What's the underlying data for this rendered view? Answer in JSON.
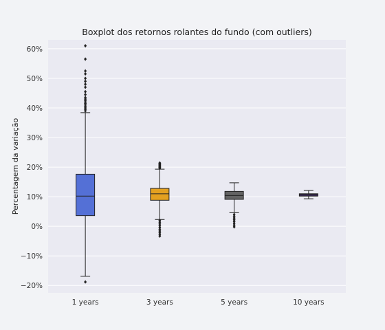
{
  "chart_data": {
    "type": "box",
    "title": "Boxplot dos retornos rolantes do fundo (com outliers)",
    "xlabel": "",
    "ylabel": "Percentagem da variação",
    "ylim": [
      -0.225,
      0.63
    ],
    "yticks": [
      -0.2,
      -0.1,
      0.0,
      0.1,
      0.2,
      0.3,
      0.4,
      0.5,
      0.6
    ],
    "ytick_labels": [
      "−20%",
      "−10%",
      "0%",
      "10%",
      "20%",
      "30%",
      "40%",
      "50%",
      "60%"
    ],
    "grid": true,
    "categories": [
      "1 years",
      "3 years",
      "5 years",
      "10 years"
    ],
    "boxes": [
      {
        "category": "1 years",
        "color": "#5470d6",
        "whisker_low": -0.169,
        "q1": 0.036,
        "median": 0.102,
        "q3": 0.176,
        "whisker_high": 0.384,
        "outliers": [
          -0.188,
          0.39,
          0.395,
          0.4,
          0.405,
          0.41,
          0.415,
          0.42,
          0.425,
          0.43,
          0.435,
          0.445,
          0.455,
          0.47,
          0.48,
          0.49,
          0.5,
          0.515,
          0.525,
          0.565,
          0.61
        ]
      },
      {
        "category": "3 years",
        "color": "#e3a020",
        "whisker_low": 0.023,
        "q1": 0.088,
        "median": 0.11,
        "q3": 0.128,
        "whisker_high": 0.193,
        "outliers": [
          -0.033,
          -0.028,
          -0.022,
          -0.016,
          -0.01,
          -0.004,
          0.002,
          0.008,
          0.014,
          0.02,
          0.196,
          0.198,
          0.2,
          0.202,
          0.204,
          0.206,
          0.208,
          0.21,
          0.212,
          0.214
        ]
      },
      {
        "category": "5 years",
        "color": "#636363",
        "whisker_low": 0.046,
        "q1": 0.091,
        "median": 0.104,
        "q3": 0.118,
        "whisker_high": 0.147,
        "outliers": [
          -0.002,
          0.004,
          0.01,
          0.016,
          0.022,
          0.028,
          0.034,
          0.04
        ]
      },
      {
        "category": "10 years",
        "color": "#3d2a5c",
        "whisker_low": 0.093,
        "q1": 0.102,
        "median": 0.106,
        "q3": 0.11,
        "whisker_high": 0.121,
        "outliers": []
      }
    ]
  }
}
